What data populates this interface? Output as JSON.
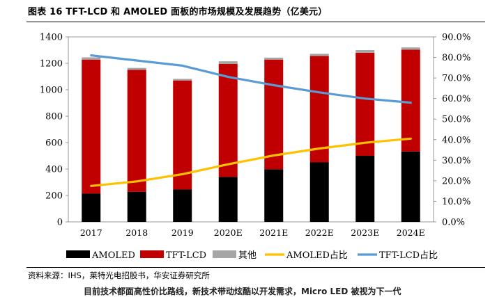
{
  "title": "图表 16 TFT-LCD 和 AMOLED 面板的市场规模及发展趋势（亿美元）",
  "source": "资料来源：IHS，莱特光电招股书，华安证券研究所",
  "next_line": "目前技术都面高性价比路线，新技术带动炫酷以开发需求，Micro LED 被视为下一代",
  "chart_data": {
    "type": "bar",
    "stacked": true,
    "categories": [
      "2017",
      "2018",
      "2019",
      "2020E",
      "2021E",
      "2022E",
      "2023E",
      "2024E"
    ],
    "series": [
      {
        "name": "AMOLED",
        "kind": "bar",
        "axis": "left",
        "color": "#000000",
        "values": [
          215,
          228,
          245,
          340,
          398,
          452,
          500,
          533
        ]
      },
      {
        "name": "TFT-LCD",
        "kind": "bar",
        "axis": "left",
        "color": "#c00000",
        "values": [
          1013,
          922,
          825,
          855,
          830,
          803,
          780,
          770
        ]
      },
      {
        "name": "其他",
        "kind": "bar",
        "axis": "left",
        "color": "#a6a6a6",
        "values": [
          17,
          15,
          12,
          20,
          15,
          17,
          20,
          17
        ]
      },
      {
        "name": "AMOLED占比",
        "kind": "line",
        "axis": "right",
        "color": "#ffc000",
        "values": [
          0.175,
          0.197,
          0.232,
          0.28,
          0.323,
          0.357,
          0.385,
          0.405
        ]
      },
      {
        "name": "TFT-LCD占比",
        "kind": "line",
        "axis": "right",
        "color": "#5b9bd5",
        "values": [
          0.81,
          0.785,
          0.76,
          0.705,
          0.665,
          0.63,
          0.6,
          0.58
        ]
      }
    ],
    "y_left": {
      "min": 0,
      "max": 1400,
      "ticks": [
        "0",
        "200",
        "400",
        "600",
        "800",
        "1000",
        "1200",
        "1400"
      ]
    },
    "y_right": {
      "min": 0,
      "max": 0.9,
      "ticks": [
        "0.0%",
        "10.0%",
        "20.0%",
        "30.0%",
        "40.0%",
        "50.0%",
        "60.0%",
        "70.0%",
        "80.0%",
        "90.0%"
      ]
    },
    "grid": false,
    "legend_position": "bottom"
  }
}
